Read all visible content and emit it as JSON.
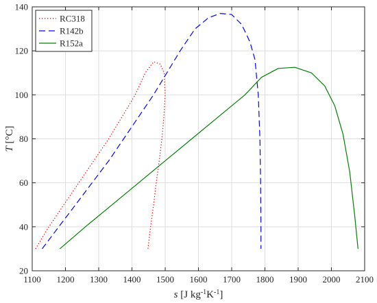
{
  "chart_data": {
    "type": "line",
    "xlabel": {
      "main": "s",
      "unit_pre": " [J kg",
      "sup1": "-1",
      "unit_mid": "K",
      "sup2": "-1",
      "unit_post": "]"
    },
    "ylabel": {
      "main": "T",
      "unit": " [°C]"
    },
    "xlim": [
      1100,
      2100
    ],
    "ylim": [
      20,
      140
    ],
    "xticks": [
      1100,
      1200,
      1300,
      1400,
      1500,
      1600,
      1700,
      1800,
      1900,
      2000,
      2100
    ],
    "yticks": [
      20,
      40,
      60,
      80,
      100,
      120,
      140
    ],
    "grid": true,
    "legend_position": "top-left",
    "series": [
      {
        "name": "RC318",
        "color": "#ff0000",
        "style": "dotted",
        "points": [
          [
            1110,
            30
          ],
          [
            1150,
            40
          ],
          [
            1195,
            50
          ],
          [
            1240,
            60
          ],
          [
            1285,
            70
          ],
          [
            1330,
            80
          ],
          [
            1370,
            90
          ],
          [
            1410,
            100
          ],
          [
            1440,
            110
          ],
          [
            1465,
            115
          ],
          [
            1485,
            114
          ],
          [
            1497,
            110
          ],
          [
            1500,
            100
          ],
          [
            1496,
            90
          ],
          [
            1490,
            80
          ],
          [
            1482,
            70
          ],
          [
            1473,
            60
          ],
          [
            1465,
            50
          ],
          [
            1456,
            40
          ],
          [
            1448,
            30
          ]
        ]
      },
      {
        "name": "R142b",
        "color": "#0000ff",
        "style": "dashed",
        "points": [
          [
            1130,
            30
          ],
          [
            1180,
            40
          ],
          [
            1230,
            50
          ],
          [
            1280,
            60
          ],
          [
            1330,
            70
          ],
          [
            1375,
            80
          ],
          [
            1420,
            90
          ],
          [
            1465,
            100
          ],
          [
            1505,
            110
          ],
          [
            1545,
            120
          ],
          [
            1590,
            130
          ],
          [
            1630,
            135
          ],
          [
            1665,
            137
          ],
          [
            1700,
            136.5
          ],
          [
            1730,
            132
          ],
          [
            1755,
            124
          ],
          [
            1770,
            116
          ],
          [
            1780,
            100
          ],
          [
            1785,
            80
          ],
          [
            1787,
            60
          ],
          [
            1788,
            40
          ],
          [
            1788,
            30
          ]
        ]
      },
      {
        "name": "R152a",
        "color": "#008000",
        "style": "solid",
        "points": [
          [
            1183,
            30
          ],
          [
            1260,
            40
          ],
          [
            1340,
            50
          ],
          [
            1420,
            60
          ],
          [
            1500,
            70
          ],
          [
            1580,
            80
          ],
          [
            1660,
            90
          ],
          [
            1740,
            100
          ],
          [
            1790,
            108
          ],
          [
            1840,
            112
          ],
          [
            1890,
            112.5
          ],
          [
            1940,
            110
          ],
          [
            1980,
            104
          ],
          [
            2010,
            95
          ],
          [
            2035,
            82
          ],
          [
            2055,
            65
          ],
          [
            2070,
            45
          ],
          [
            2080,
            30
          ]
        ]
      }
    ]
  }
}
